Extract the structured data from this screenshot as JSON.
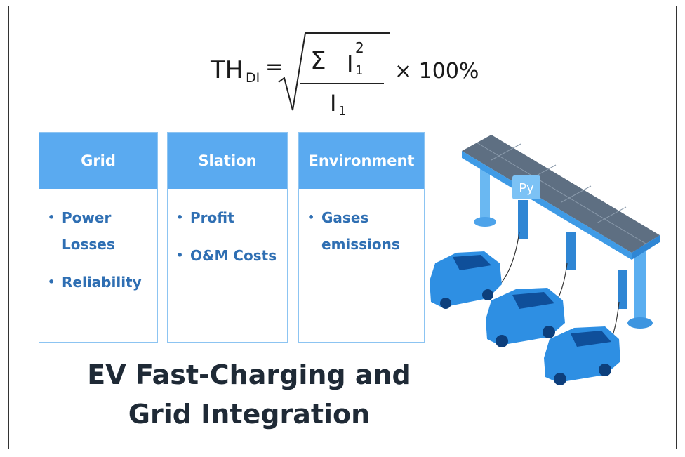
{
  "formula": {
    "lhs": "TH",
    "lhs_sub": "DI",
    "equals": "=",
    "sum": "Σ",
    "num_var": "I",
    "num_sup": "2",
    "num_sub": "1",
    "den_var": "I",
    "den_sub": "1",
    "tail": "× 100%"
  },
  "cards": [
    {
      "header": "Grid",
      "bullets": [
        "Power Losses",
        "Reliability"
      ]
    },
    {
      "header": "Slation",
      "bullets": [
        "Profit",
        "O&M Costs"
      ]
    },
    {
      "header": "Environment",
      "bullets": [
        "Gases emissions"
      ]
    }
  ],
  "title": {
    "lines": [
      "EV Fast-Charging and",
      "Grid Integration"
    ]
  },
  "illustration": {
    "label": "Py"
  }
}
